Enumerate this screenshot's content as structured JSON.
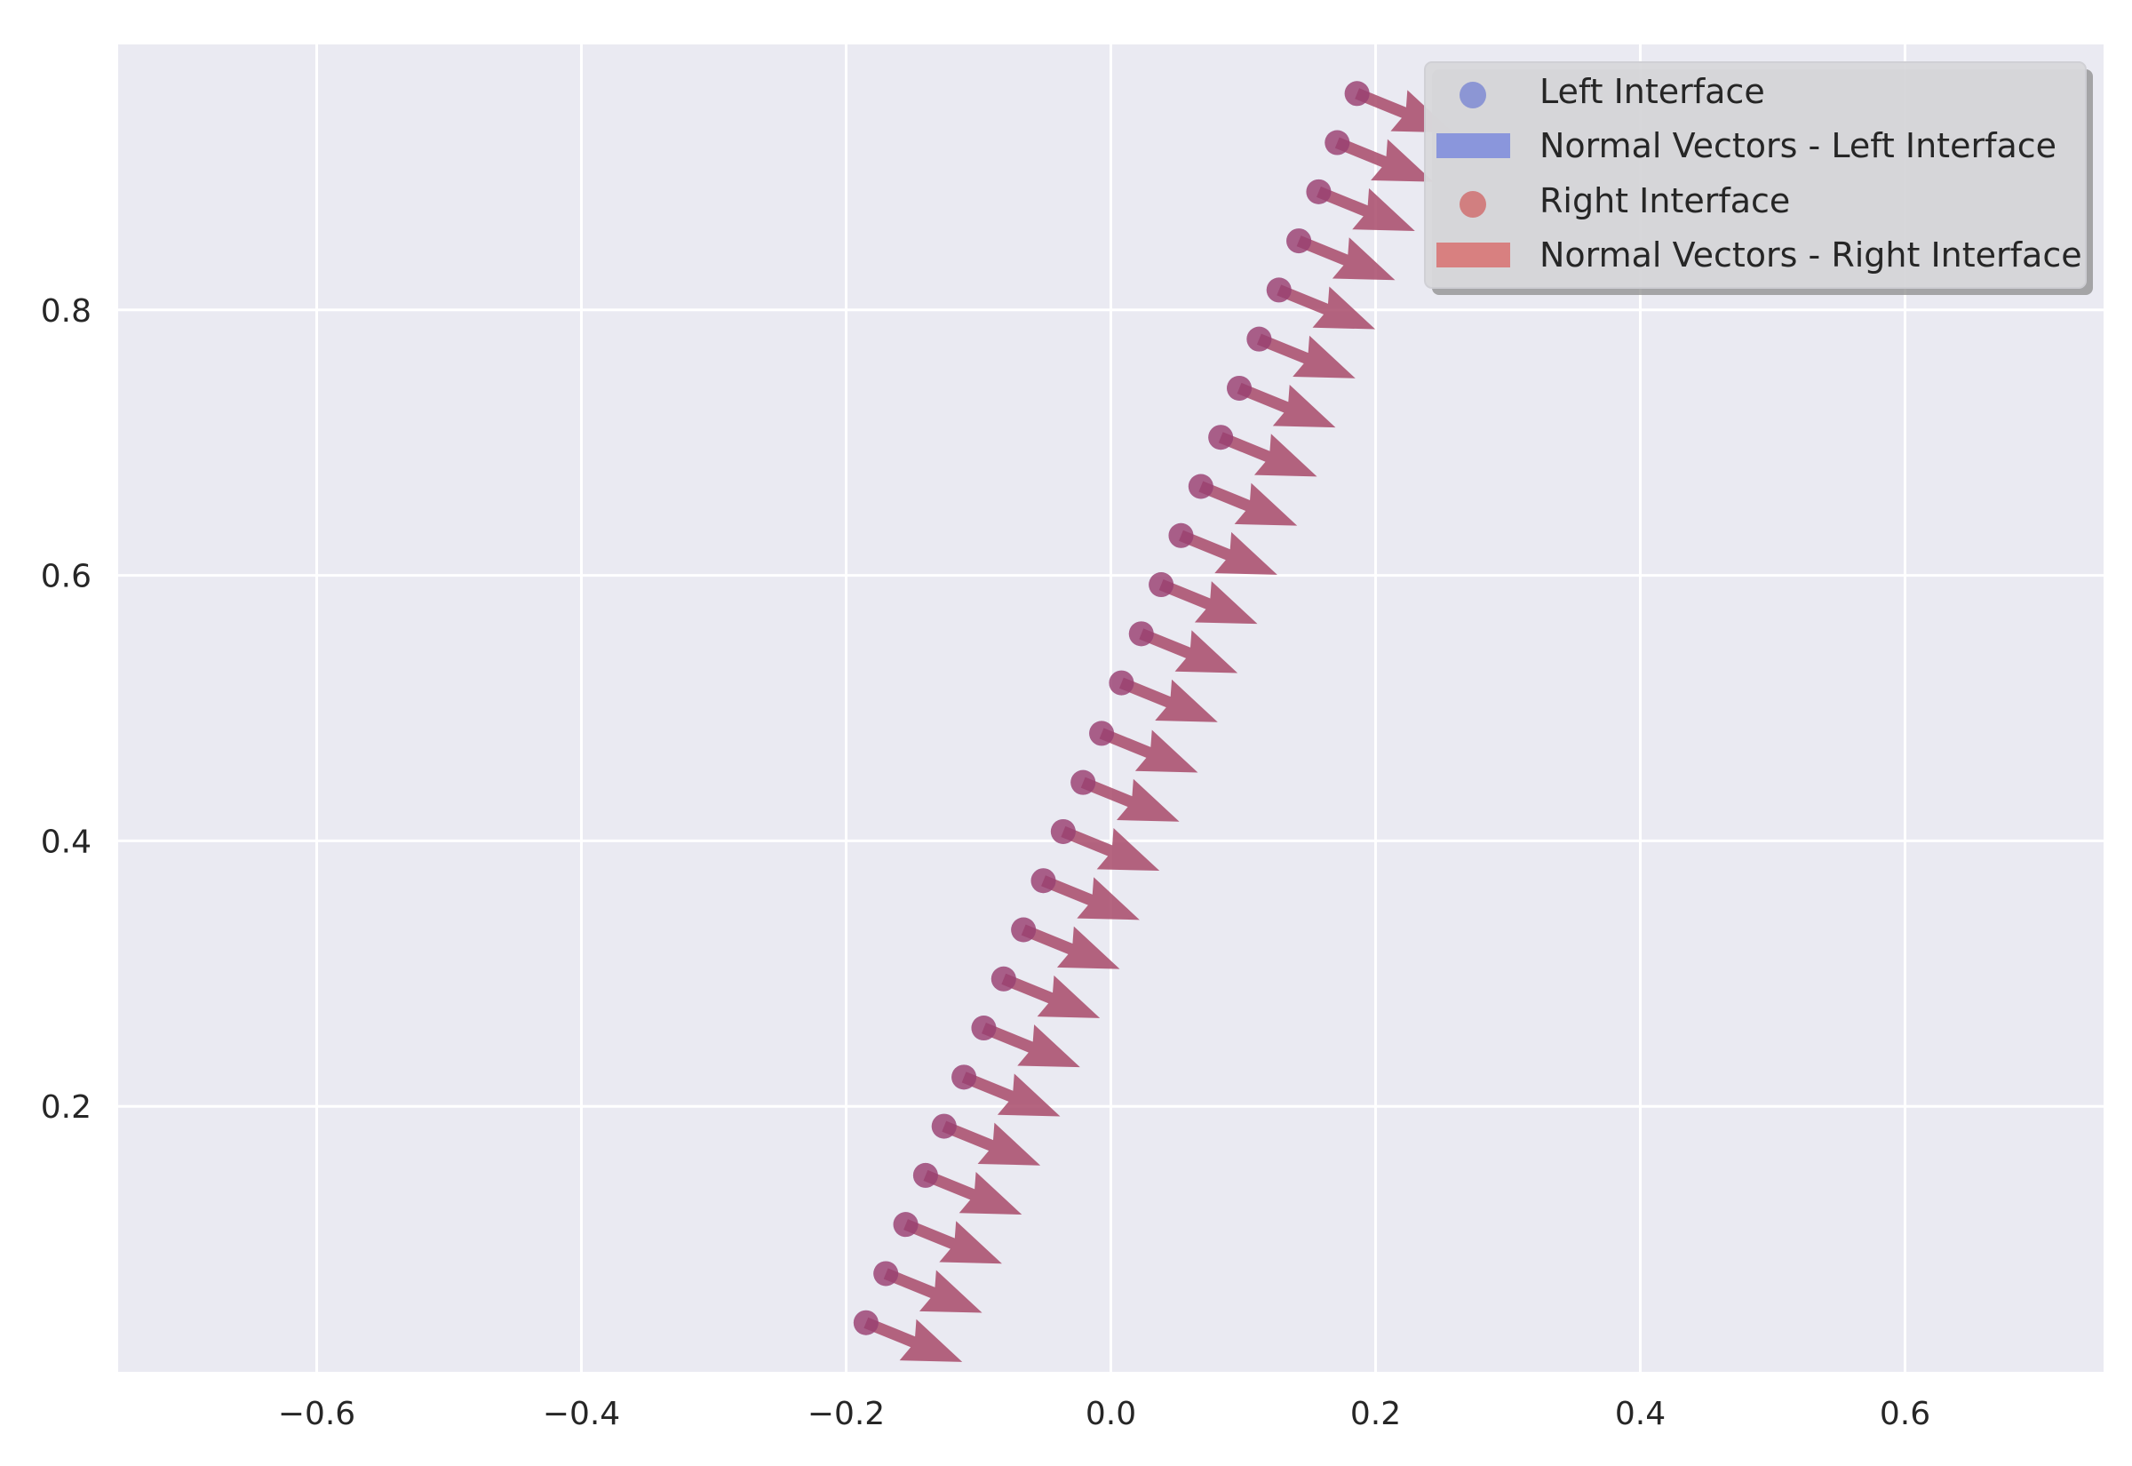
{
  "chart_data": {
    "type": "quiver",
    "title": "",
    "xlabel": "",
    "ylabel": "",
    "xlim": [
      -0.75,
      0.75
    ],
    "ylim": [
      0,
      1.0
    ],
    "xticks": [
      -0.6,
      -0.4,
      -0.2,
      0.0,
      0.2,
      0.4,
      0.6
    ],
    "yticks": [
      0.2,
      0.4,
      0.6,
      0.8
    ],
    "xtick_labels": [
      "−0.6",
      "−0.4",
      "−0.2",
      "0.0",
      "0.2",
      "0.4",
      "0.6"
    ],
    "ytick_labels": [
      "0.2",
      "0.4",
      "0.6",
      "0.8"
    ],
    "grid": true,
    "legend_position": "top-right",
    "background_color": "#eaeaf2",
    "grid_color": "#ffffff",
    "series": [
      {
        "name": "Left Interface",
        "kind": "scatter",
        "color": "#5a6ad0",
        "x": [
          -0.185,
          -0.17,
          -0.155,
          -0.14,
          -0.126,
          -0.111,
          -0.096,
          -0.081,
          -0.066,
          -0.051,
          -0.036,
          -0.021,
          -0.007,
          0.008,
          0.023,
          0.038,
          0.053,
          0.068,
          0.083,
          0.097,
          0.112,
          0.127,
          0.142,
          0.157,
          0.171,
          0.186
        ],
        "y": [
          0.037,
          0.074,
          0.111,
          0.148,
          0.185,
          0.222,
          0.259,
          0.296,
          0.333,
          0.37,
          0.407,
          0.444,
          0.481,
          0.519,
          0.556,
          0.593,
          0.63,
          0.667,
          0.704,
          0.741,
          0.778,
          0.815,
          0.852,
          0.889,
          0.926,
          0.963
        ]
      },
      {
        "name": "Normal Vectors - Left Interface",
        "kind": "quiver",
        "color": "#8a96dc",
        "u": 0.926,
        "v": -0.377
      },
      {
        "name": "Right Interface",
        "kind": "scatter",
        "color": "#d07070",
        "x": [
          -0.185,
          -0.17,
          -0.155,
          -0.14,
          -0.126,
          -0.111,
          -0.096,
          -0.081,
          -0.066,
          -0.051,
          -0.036,
          -0.021,
          -0.007,
          0.008,
          0.023,
          0.038,
          0.053,
          0.068,
          0.083,
          0.097,
          0.112,
          0.127,
          0.142,
          0.157,
          0.171,
          0.186
        ],
        "y": [
          0.037,
          0.074,
          0.111,
          0.148,
          0.185,
          0.222,
          0.259,
          0.296,
          0.333,
          0.37,
          0.407,
          0.444,
          0.481,
          0.519,
          0.556,
          0.593,
          0.63,
          0.667,
          0.704,
          0.741,
          0.778,
          0.815,
          0.852,
          0.889,
          0.926,
          0.963
        ]
      },
      {
        "name": "Normal Vectors - Right Interface",
        "kind": "quiver",
        "color": "#d88080",
        "u": 0.926,
        "v": -0.377
      }
    ],
    "overlap_color": "#a84a6a"
  }
}
